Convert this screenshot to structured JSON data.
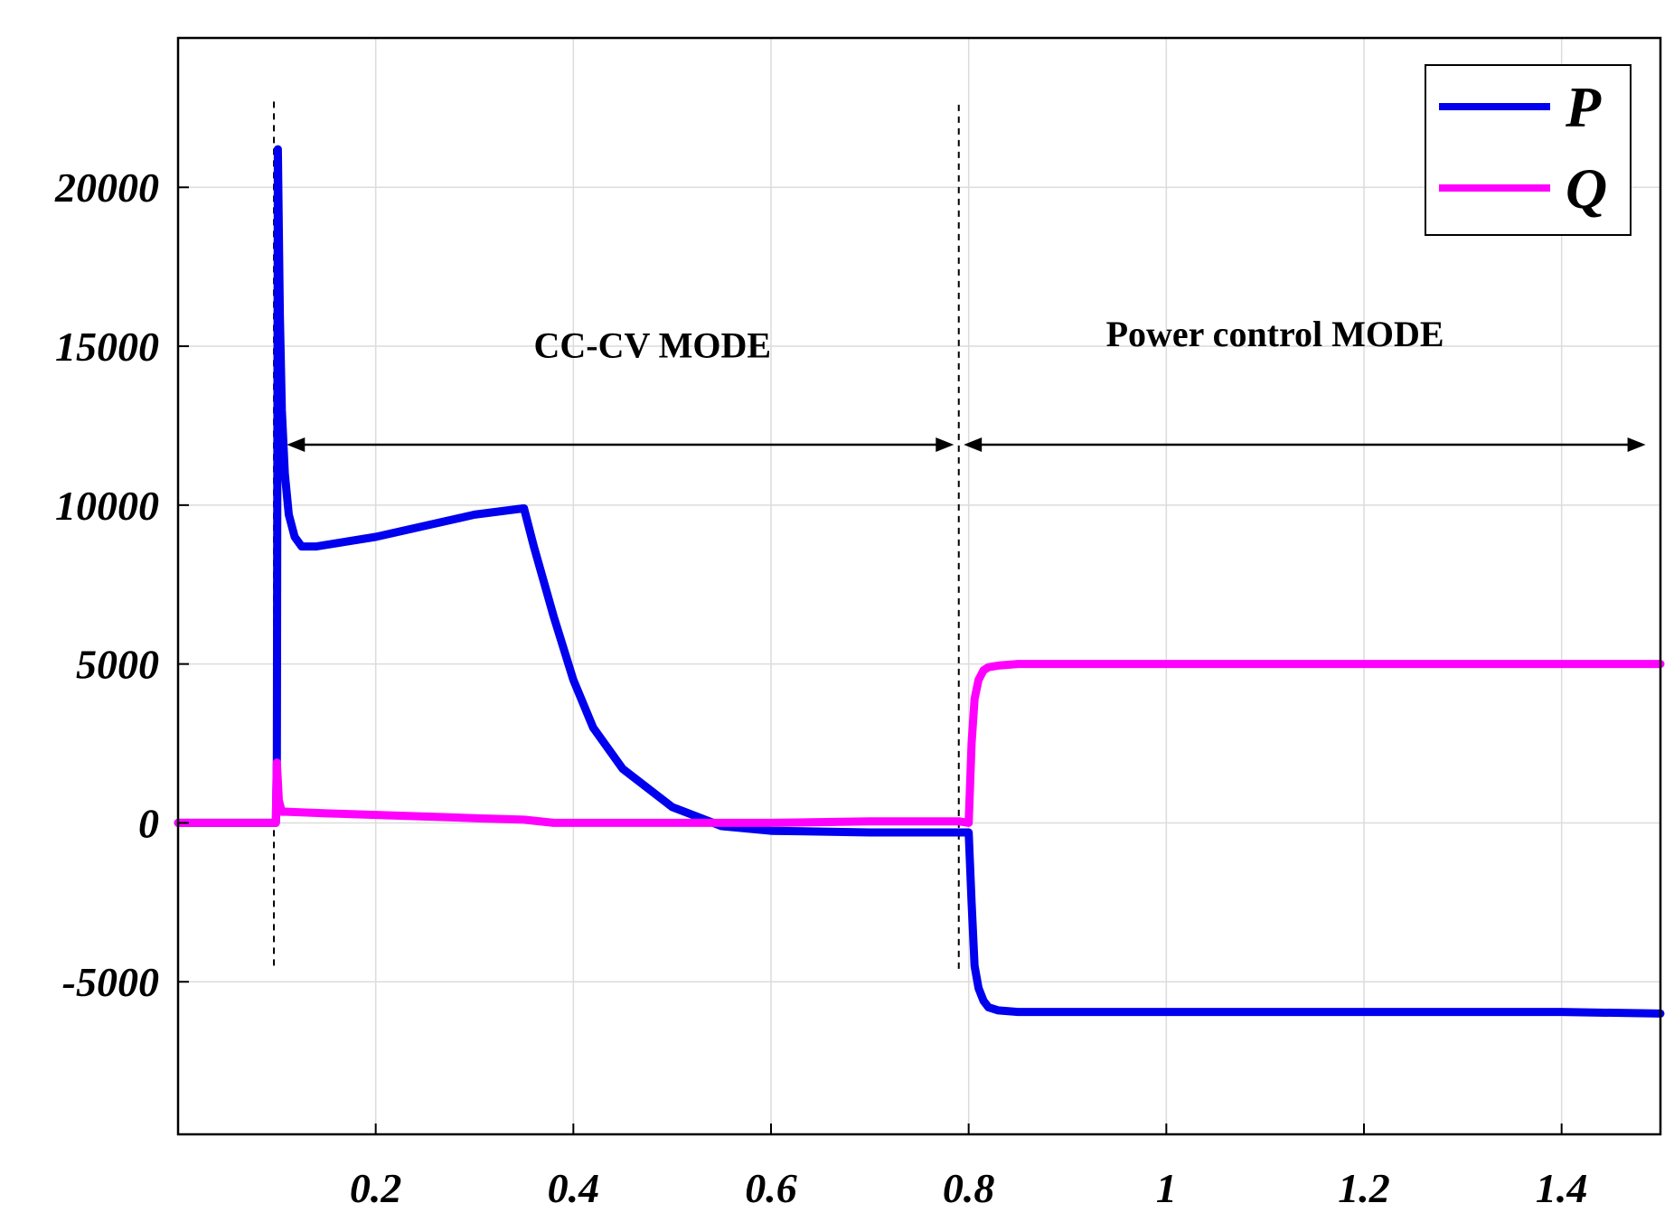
{
  "chart_data": {
    "type": "line",
    "title": "",
    "xlabel": "",
    "ylabel": "",
    "xlim": [
      0,
      1.5
    ],
    "ylim": [
      -9800,
      24700
    ],
    "grid": true,
    "legend_position": "top-right",
    "x_ticks": [
      0.2,
      0.4,
      0.6,
      0.8,
      1,
      1.2,
      1.4
    ],
    "x_tick_labels": [
      "0.2",
      "0.4",
      "0.6",
      "0.8",
      "1",
      "1.2",
      "1.4"
    ],
    "y_ticks": [
      -5000,
      0,
      5000,
      10000,
      15000,
      20000
    ],
    "y_tick_labels": [
      "-5000",
      "0",
      "5000",
      "10000",
      "15000",
      "20000"
    ],
    "series": [
      {
        "name": "P",
        "color": "#0000ee",
        "x": [
          0,
          0.099,
          0.1,
          0.101,
          0.103,
          0.105,
          0.108,
          0.112,
          0.118,
          0.125,
          0.14,
          0.2,
          0.3,
          0.35,
          0.36,
          0.38,
          0.4,
          0.42,
          0.45,
          0.5,
          0.55,
          0.6,
          0.7,
          0.79,
          0.8,
          0.803,
          0.806,
          0.81,
          0.815,
          0.82,
          0.83,
          0.85,
          0.9,
          1.0,
          1.1,
          1.2,
          1.3,
          1.4,
          1.5
        ],
        "y": [
          0,
          0,
          2000,
          21200,
          16000,
          13000,
          11000,
          9700,
          9000,
          8700,
          8700,
          9000,
          9700,
          9900,
          8700,
          6500,
          4500,
          3000,
          1700,
          500,
          -100,
          -250,
          -300,
          -300,
          -300,
          -2500,
          -4500,
          -5200,
          -5600,
          -5800,
          -5900,
          -5950,
          -5950,
          -5950,
          -5950,
          -5950,
          -5950,
          -5950,
          -6000
        ]
      },
      {
        "name": "Q",
        "color": "#ff00ff",
        "x": [
          0,
          0.099,
          0.1,
          0.102,
          0.105,
          0.11,
          0.15,
          0.2,
          0.25,
          0.3,
          0.35,
          0.38,
          0.45,
          0.5,
          0.6,
          0.7,
          0.79,
          0.8,
          0.803,
          0.806,
          0.81,
          0.815,
          0.82,
          0.83,
          0.85,
          0.9,
          1.0,
          1.1,
          1.2,
          1.3,
          1.4,
          1.5
        ],
        "y": [
          0,
          0,
          1900,
          700,
          350,
          350,
          300,
          250,
          200,
          150,
          100,
          0,
          0,
          0,
          0,
          50,
          50,
          0,
          2500,
          3900,
          4500,
          4800,
          4900,
          4950,
          5000,
          5000,
          5000,
          5000,
          5000,
          5000,
          5000,
          5000
        ]
      }
    ],
    "annotations": [
      {
        "id": "cc-cv",
        "text": "CC-CV MODE",
        "x": 0.48,
        "y": 14650
      },
      {
        "id": "power-control",
        "text": "Power control MODE",
        "x": 1.11,
        "y": 15000
      }
    ],
    "arrows": [
      {
        "id": "cc-cv-span",
        "x_start": 0.11,
        "x_end": 0.785,
        "y": 11900
      },
      {
        "id": "power-control-span",
        "x_start": 0.795,
        "x_end": 1.485,
        "y": 11900
      }
    ],
    "markers": [
      {
        "id": "start",
        "x": 0.097,
        "y_top": 22700,
        "y_bottom": -4600
      },
      {
        "id": "switch",
        "x": 0.79,
        "y_top": 22600,
        "y_bottom": -4600
      }
    ]
  }
}
